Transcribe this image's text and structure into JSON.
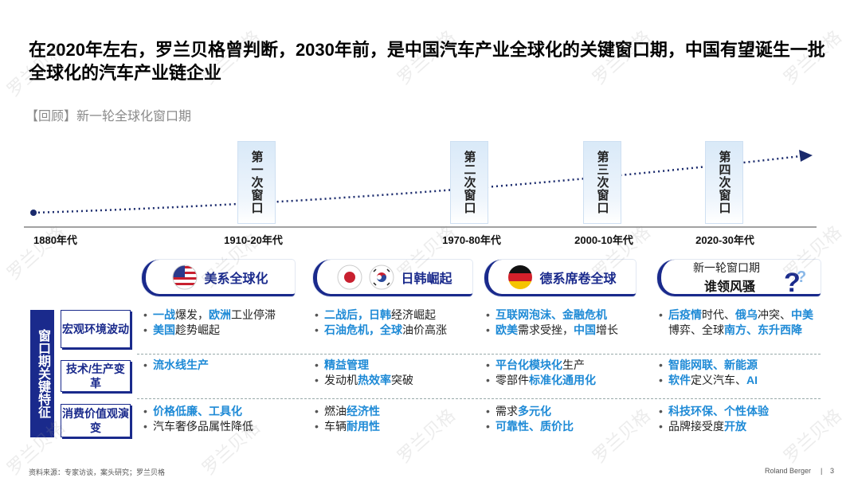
{
  "title": "在2020年左右，罗兰贝格曾判断，2030年前，是中国汽车产业全球化的关键窗口期，中国有望诞生一批全球化的汽车产业链企业",
  "subtitle": "【回顾】新一轮全球化窗口期",
  "watermark": "罗兰贝格",
  "timeline": {
    "eras": [
      "1880年代",
      "1910-20年代",
      "1970-80年代",
      "2000-10年代",
      "2020-30年代"
    ],
    "windows": [
      "第一次窗口",
      "第二次窗口",
      "第三次窗口",
      "第四次窗口"
    ]
  },
  "side_label": "窗口期关键特征",
  "row_labels": [
    "宏观环境波动",
    "技术/生产变革",
    "消费价值观演变"
  ],
  "columns": [
    {
      "header": "美系全球化",
      "cells": [
        [
          [
            {
              "text": "一战",
              "em": true
            },
            "爆发，",
            {
              "text": "欧洲",
              "em": true
            },
            "工业停滞"
          ],
          [
            {
              "text": "美国",
              "em": true
            },
            "趁势崛起"
          ]
        ],
        [
          [
            {
              "text": "流水线生产",
              "em": true
            }
          ]
        ],
        [
          [
            {
              "text": "价格低廉、工具化",
              "em": true
            }
          ],
          [
            "汽车奢侈品属性降低"
          ]
        ]
      ]
    },
    {
      "header": "日韩崛起",
      "cells": [
        [
          [
            {
              "text": "二战后，日韩",
              "em": true
            },
            "经济崛起"
          ],
          [
            {
              "text": "石油危机，全球",
              "em": true
            },
            "油价高涨"
          ]
        ],
        [
          [
            {
              "text": "精益管理",
              "em": true
            }
          ],
          [
            "发动机",
            {
              "text": "热效率",
              "em": true
            },
            "突破"
          ]
        ],
        [
          [
            "燃油",
            {
              "text": "经济性",
              "em": true
            }
          ],
          [
            "车辆",
            {
              "text": "耐用性",
              "em": true
            }
          ]
        ]
      ]
    },
    {
      "header": "德系席卷全球",
      "cells": [
        [
          [
            {
              "text": "互联网泡沫、金融危机",
              "em": true
            }
          ],
          [
            {
              "text": "欧美",
              "em": true
            },
            "需求受挫，",
            {
              "text": "中国",
              "em": true
            },
            "增长"
          ]
        ],
        [
          [
            {
              "text": "平台化模块化",
              "em": true
            },
            "生产"
          ],
          [
            "零部件",
            {
              "text": "标准化通用化",
              "em": true
            }
          ]
        ],
        [
          [
            "需求",
            {
              "text": "多元化",
              "em": true
            }
          ],
          [
            {
              "text": "可靠性、质价比",
              "em": true
            }
          ]
        ]
      ]
    },
    {
      "header_lines": [
        "新一轮窗口期",
        "谁领风骚"
      ],
      "cells": [
        [
          [
            {
              "text": "后疫情",
              "em": true
            },
            "时代、",
            {
              "text": "俄乌",
              "em": true
            },
            "冲突、",
            {
              "text": "中美",
              "em": true
            },
            "博弈、全球",
            {
              "text": "南方、东升西降",
              "em": true
            }
          ]
        ],
        [
          [
            {
              "text": "智能网联、新能源",
              "em": true
            }
          ],
          [
            {
              "text": "软件",
              "em": true
            },
            "定义汽车、",
            {
              "text": "AI",
              "em": true
            }
          ]
        ],
        [
          [
            {
              "text": "科技环保、个性体验",
              "em": true
            }
          ],
          [
            "品牌接受度",
            {
              "text": "开放",
              "em": true
            }
          ]
        ]
      ]
    }
  ],
  "footer": {
    "source": "资料来源：专家访谈，案头研究；罗兰贝格",
    "brand": "Roland Berger",
    "separator": "|",
    "page": "3"
  }
}
